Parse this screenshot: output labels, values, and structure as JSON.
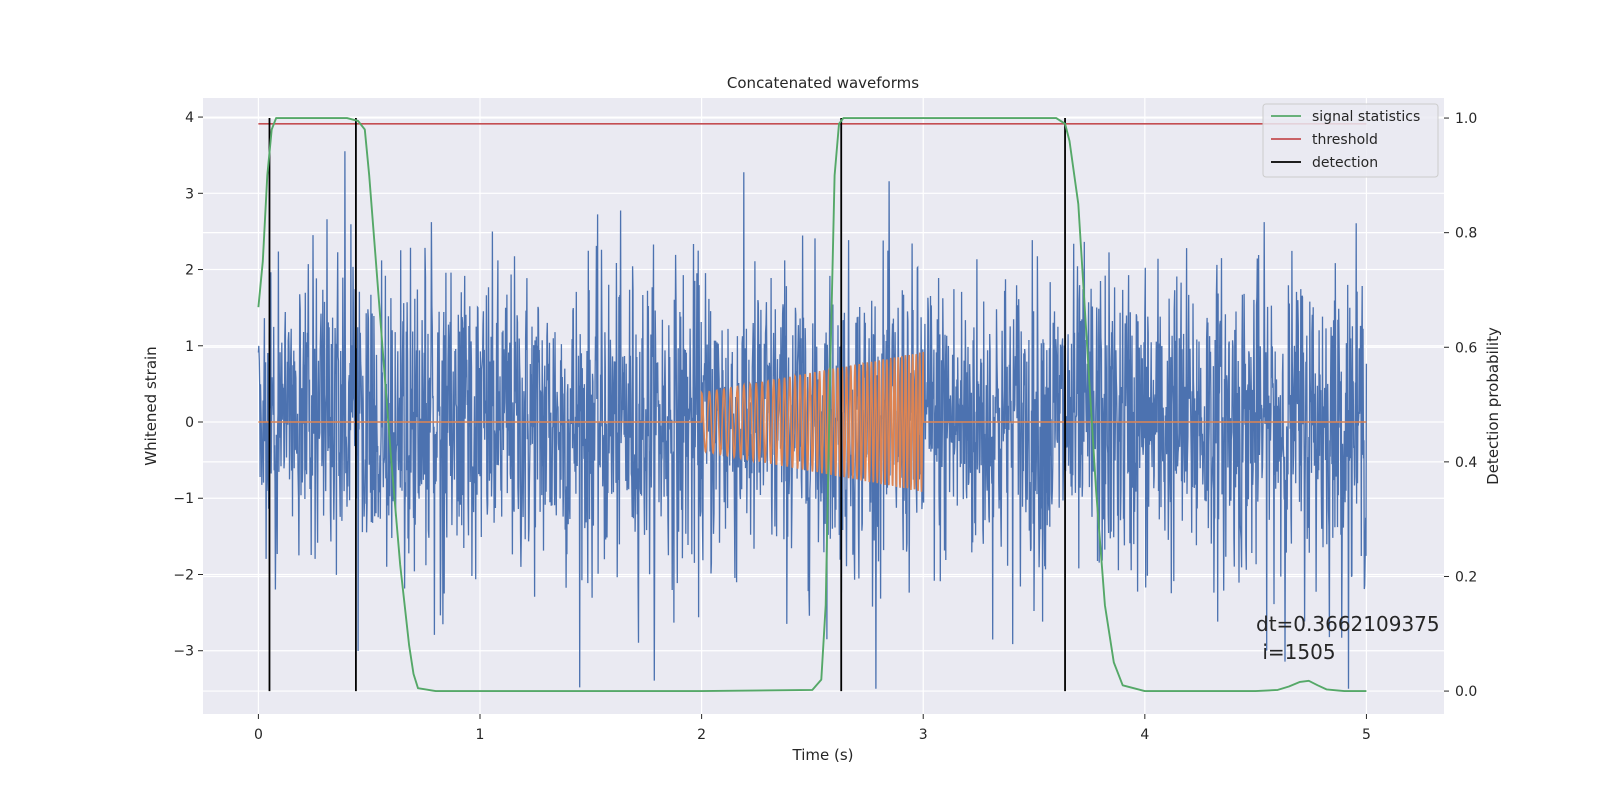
{
  "chart_data": {
    "type": "line",
    "title": "Concatenated waveforms",
    "xlabel": "Time (s)",
    "ylabel": "Whitened strain",
    "ylabel_right": "Detection probability",
    "xlim": [
      -0.25,
      5.35
    ],
    "ylim": [
      -3.83,
      4.25
    ],
    "ylim_right": [
      -0.04,
      1.035
    ],
    "xticks": [
      0,
      1,
      2,
      3,
      4,
      5
    ],
    "yticks": [
      -3,
      -2,
      -1,
      0,
      1,
      2,
      3,
      4
    ],
    "yticks_right": [
      0.0,
      0.2,
      0.4,
      0.6,
      0.8,
      1.0
    ],
    "xtick_labels": [
      "0",
      "1",
      "2",
      "3",
      "4",
      "5"
    ],
    "ytick_labels": [
      "−3",
      "−2",
      "−1",
      "0",
      "1",
      "2",
      "3",
      "4"
    ],
    "ytick_labels_right": [
      "0.0",
      "0.2",
      "0.4",
      "0.6",
      "0.8",
      "1.0"
    ],
    "grid": true,
    "legend_position": "top-right",
    "colors": {
      "strain": "#4c72b0",
      "injection": "#dd8452",
      "signal_statistics": "#55a868",
      "threshold": "#c44e52",
      "detection": "#000000",
      "background": "#eaeaf2",
      "grid": "#ffffff"
    },
    "series": [
      {
        "name": "",
        "axis": "left",
        "description_kind": "noise",
        "x_range": [
          0,
          5
        ],
        "envelope": 2.6,
        "color": "#4c72b0"
      },
      {
        "name": "",
        "axis": "left",
        "description_kind": "chirp",
        "x": [
          0,
          2,
          3,
          5
        ],
        "amplitude_start": 0.38,
        "amplitude_end": 0.92,
        "chirp_range": [
          2,
          3
        ],
        "color": "#dd8452"
      },
      {
        "name": "signal statistics",
        "axis": "right",
        "x": [
          0.0,
          0.02,
          0.04,
          0.06,
          0.08,
          0.1,
          0.2,
          0.3,
          0.4,
          0.45,
          0.48,
          0.5,
          0.53,
          0.56,
          0.6,
          0.64,
          0.68,
          0.7,
          0.72,
          0.8,
          1.0,
          1.5,
          2.0,
          2.5,
          2.54,
          2.56,
          2.58,
          2.6,
          2.62,
          2.64,
          2.7,
          3.0,
          3.5,
          3.6,
          3.64,
          3.66,
          3.7,
          3.74,
          3.78,
          3.82,
          3.86,
          3.9,
          4.0,
          4.5,
          4.6,
          4.65,
          4.7,
          4.74,
          4.78,
          4.82,
          4.9,
          5.0
        ],
        "values": [
          0.67,
          0.75,
          0.9,
          0.98,
          1.0,
          1.0,
          1.0,
          1.0,
          1.0,
          0.995,
          0.98,
          0.9,
          0.75,
          0.6,
          0.4,
          0.22,
          0.08,
          0.03,
          0.005,
          0.0,
          0.0,
          0.0,
          0.0,
          0.002,
          0.02,
          0.15,
          0.55,
          0.9,
          0.99,
          1.0,
          1.0,
          1.0,
          1.0,
          1.0,
          0.99,
          0.96,
          0.85,
          0.6,
          0.35,
          0.15,
          0.05,
          0.01,
          0.0,
          0.0,
          0.002,
          0.008,
          0.016,
          0.018,
          0.01,
          0.003,
          0.0,
          0.0
        ],
        "color": "#55a868"
      },
      {
        "name": "threshold",
        "axis": "right",
        "x": [
          0,
          5
        ],
        "values": [
          0.99,
          0.99
        ],
        "color": "#c44e52"
      },
      {
        "name": "detection",
        "axis": "right",
        "kind": "vlines",
        "x": [
          0.05,
          0.44,
          2.63,
          3.64
        ],
        "ymin": 0.0,
        "ymax": 1.0,
        "color": "#000000"
      }
    ],
    "annotation": {
      "line1": "dt=0.3662109375",
      "line2": " i=1505"
    }
  }
}
